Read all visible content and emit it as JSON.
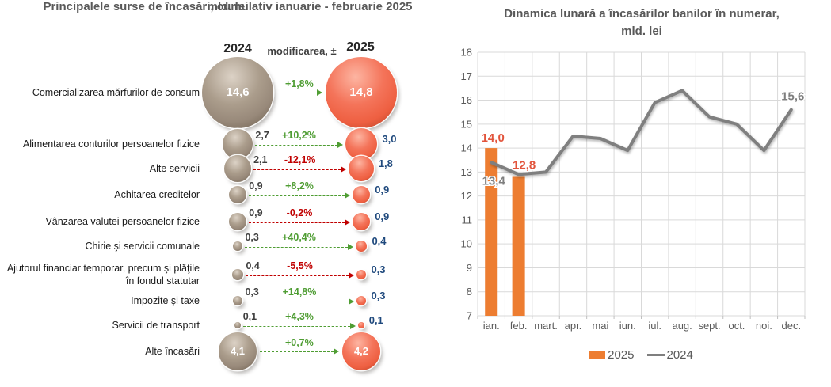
{
  "left_panel": {
    "title": "Principalele surse de încasări, cumulativ ianuarie - februarie 2025",
    "subtitle": "mld. lei",
    "columns": {
      "y2024": "2024",
      "change": "modificarea, ±",
      "y2025": "2025"
    },
    "rows": [
      {
        "label": "Comercializarea mărfurilor de consum",
        "v2024": "14,6",
        "change": "+1,8%",
        "v2025": "14,8",
        "direction": "up",
        "values_inside": true
      },
      {
        "label": "Alimentarea conturilor persoanelor fizice",
        "v2024": "2,7",
        "change": "+10,2%",
        "v2025": "3,0",
        "direction": "up",
        "values_inside": false
      },
      {
        "label": "Alte servicii",
        "v2024": "2,1",
        "change": "-12,1%",
        "v2025": "1,8",
        "direction": "down",
        "values_inside": false
      },
      {
        "label": "Achitarea creditelor",
        "v2024": "0,9",
        "change": "+8,2%",
        "v2025": "0,9",
        "direction": "up",
        "values_inside": false
      },
      {
        "label": "Vânzarea valutei persoanelor fizice",
        "v2024": "0,9",
        "change": "-0,2%",
        "v2025": "0,9",
        "direction": "down",
        "values_inside": false
      },
      {
        "label": "Chirie şi servicii comunale",
        "v2024": "0,3",
        "change": "+40,4%",
        "v2025": "0,4",
        "direction": "up",
        "values_inside": false
      },
      {
        "label": "Ajutorul financiar temporar, precum şi plăţile în fondul statutar",
        "v2024": "0,4",
        "change": "-5,5%",
        "v2025": "0,3",
        "direction": "down",
        "values_inside": false
      },
      {
        "label": "Impozite şi taxe",
        "v2024": "0,3",
        "change": "+14,8%",
        "v2025": "0,3",
        "direction": "up",
        "values_inside": false
      },
      {
        "label": "Servicii de transport",
        "v2024": "0,1",
        "change": "+4,3%",
        "v2025": "0,1",
        "direction": "up",
        "values_inside": false
      },
      {
        "label": "Alte încasări",
        "v2024": "4,1",
        "change": "+0,7%",
        "v2025": "4,2",
        "direction": "up",
        "values_inside": true
      }
    ]
  },
  "right_panel": {
    "title": "Dinamica lunară a încasărilor banilor în numerar,",
    "subtitle": "mld. lei",
    "legend": [
      {
        "label": "2025",
        "type": "bar",
        "color": "#ED7D31"
      },
      {
        "label": "2024",
        "type": "line",
        "color": "#7F7F7F"
      }
    ],
    "bar_labels": [
      "14,0",
      "12,8"
    ],
    "line_label_first": "13,4",
    "line_label_last": "15,6"
  },
  "chart_data": [
    {
      "type": "table",
      "subtype": "bubble-comparison",
      "title": "Principalele surse de încasări, cumulativ ianuarie - februarie 2025",
      "unit": "mld. lei",
      "columns": [
        "2024",
        "modificarea, ±",
        "2025"
      ],
      "rows": [
        {
          "label": "Comercializarea mărfurilor de consum",
          "y2024": 14.6,
          "change_pct": 1.8,
          "y2025": 14.8
        },
        {
          "label": "Alimentarea conturilor persoanelor fizice",
          "y2024": 2.7,
          "change_pct": 10.2,
          "y2025": 3.0
        },
        {
          "label": "Alte servicii",
          "y2024": 2.1,
          "change_pct": -12.1,
          "y2025": 1.8
        },
        {
          "label": "Achitarea creditelor",
          "y2024": 0.9,
          "change_pct": 8.2,
          "y2025": 0.9
        },
        {
          "label": "Vânzarea valutei persoanelor fizice",
          "y2024": 0.9,
          "change_pct": -0.2,
          "y2025": 0.9
        },
        {
          "label": "Chirie şi servicii comunale",
          "y2024": 0.3,
          "change_pct": 40.4,
          "y2025": 0.4
        },
        {
          "label": "Ajutorul financiar temporar, precum şi plăţile în fondul statutar",
          "y2024": 0.4,
          "change_pct": -5.5,
          "y2025": 0.3
        },
        {
          "label": "Impozite şi taxe",
          "y2024": 0.3,
          "change_pct": 14.8,
          "y2025": 0.3
        },
        {
          "label": "Servicii de transport",
          "y2024": 0.1,
          "change_pct": 4.3,
          "y2025": 0.1
        },
        {
          "label": "Alte încasări",
          "y2024": 4.1,
          "change_pct": 0.7,
          "y2025": 4.2
        }
      ]
    },
    {
      "type": "bar",
      "subtype": "bar+line-combo",
      "title": "Dinamica lunară a încasărilor banilor în numerar, mld. lei",
      "categories": [
        "ian.",
        "feb.",
        "mart.",
        "apr.",
        "mai",
        "iun.",
        "iul.",
        "aug.",
        "sept.",
        "oct.",
        "noi.",
        "dec."
      ],
      "series": [
        {
          "name": "2025",
          "type": "bar",
          "color": "#ED7D31",
          "values": [
            14.0,
            12.8,
            null,
            null,
            null,
            null,
            null,
            null,
            null,
            null,
            null,
            null
          ]
        },
        {
          "name": "2024",
          "type": "line",
          "color": "#7F7F7F",
          "values": [
            13.4,
            12.9,
            13.0,
            14.5,
            14.4,
            13.9,
            15.9,
            16.4,
            15.3,
            15.0,
            13.9,
            15.6
          ]
        }
      ],
      "ylim": [
        7,
        18
      ],
      "ytick_step": 1,
      "grid": true,
      "legend_position": "bottom"
    }
  ],
  "colors": {
    "bar_2025": "#ED7D31",
    "line_2024": "#7F7F7F",
    "positive": "#4F9D33",
    "negative": "#C00000",
    "value_2025_text": "#1F497D",
    "bar_label_text": "#E2543C",
    "axis_text": "#595959",
    "gridline": "#D9D9D9",
    "title_text": "#595959"
  }
}
